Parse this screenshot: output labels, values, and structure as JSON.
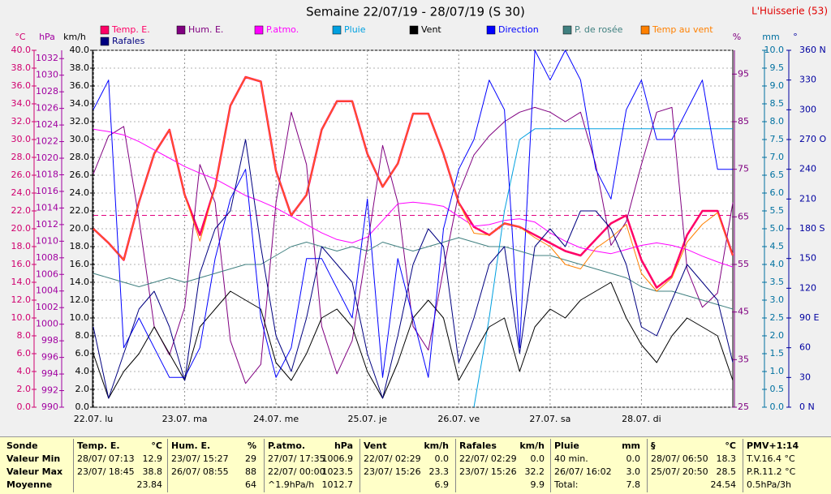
{
  "chart_data": {
    "type": "line",
    "title": "Semaine 22/07/19 - 28/07/19 (S 30)",
    "location": "L'Huisserie (53)",
    "grid": true,
    "xlim": [
      0,
      168
    ],
    "xticks": [
      {
        "value": 0,
        "label": "22.07. lu"
      },
      {
        "value": 24,
        "label": "23.07. ma"
      },
      {
        "value": 48,
        "label": "24.07. me"
      },
      {
        "value": 72,
        "label": "25.07. je"
      },
      {
        "value": 96,
        "label": "26.07. ve"
      },
      {
        "value": 120,
        "label": "27.07. sa"
      },
      {
        "value": 144,
        "label": "28.07. di"
      }
    ],
    "axes": [
      {
        "label": "°C",
        "color": "#d0006f",
        "lim": [
          0,
          40
        ],
        "ticks": [
          {
            "value": 0,
            "label": "0.0"
          },
          {
            "value": 2,
            "label": "2.0"
          },
          {
            "value": 4,
            "label": "4.0"
          },
          {
            "value": 6,
            "label": "6.0"
          },
          {
            "value": 8,
            "label": "8.0"
          },
          {
            "value": 10,
            "label": "10.0"
          },
          {
            "value": 12,
            "label": "12.0"
          },
          {
            "value": 14,
            "label": "14.0"
          },
          {
            "value": 16,
            "label": "16.0"
          },
          {
            "value": 18,
            "label": "18.0"
          },
          {
            "value": 20,
            "label": "20.0"
          },
          {
            "value": 22,
            "label": "22.0"
          },
          {
            "value": 24,
            "label": "24.0"
          },
          {
            "value": 26,
            "label": "26.0"
          },
          {
            "value": 28,
            "label": "28.0"
          },
          {
            "value": 30,
            "label": "30.0"
          },
          {
            "value": 32,
            "label": "32.0"
          },
          {
            "value": 34,
            "label": "34.0"
          },
          {
            "value": 36,
            "label": "36.0"
          },
          {
            "value": 38,
            "label": "38.0"
          },
          {
            "value": 40,
            "label": "40.0"
          }
        ]
      },
      {
        "label": "hPa",
        "color": "#a000a0",
        "lim": [
          990,
          1033
        ],
        "ticks": [
          990,
          992,
          994,
          996,
          998,
          1000,
          1002,
          1004,
          1006,
          1008,
          1010,
          1012,
          1014,
          1016,
          1018,
          1020,
          1022,
          1024,
          1026,
          1028,
          1030,
          1032
        ]
      },
      {
        "label": "km/h",
        "color": "#000000",
        "lim": [
          0,
          40
        ],
        "ticks": [
          {
            "value": 0,
            "label": "0.0"
          },
          {
            "value": 2,
            "label": "2.0"
          },
          {
            "value": 4,
            "label": "4.0"
          },
          {
            "value": 6,
            "label": "6.0"
          },
          {
            "value": 8,
            "label": "8.0"
          },
          {
            "value": 10,
            "label": "10.0"
          },
          {
            "value": 12,
            "label": "12.0"
          },
          {
            "value": 14,
            "label": "14.0"
          },
          {
            "value": 16,
            "label": "16.0"
          },
          {
            "value": 18,
            "label": "18.0"
          },
          {
            "value": 20,
            "label": "20.0"
          },
          {
            "value": 22,
            "label": "22.0"
          },
          {
            "value": 24,
            "label": "24.0"
          },
          {
            "value": 26,
            "label": "26.0"
          },
          {
            "value": 28,
            "label": "28.0"
          },
          {
            "value": 30,
            "label": "30.0"
          },
          {
            "value": 32,
            "label": "32.0"
          },
          {
            "value": 34,
            "label": "34.0"
          },
          {
            "value": 36,
            "label": "36.0"
          },
          {
            "value": 38,
            "label": "38.0"
          },
          {
            "value": 40,
            "label": "40.0"
          }
        ]
      },
      {
        "label": "%",
        "color": "#800080",
        "lim": [
          25,
          100
        ],
        "ticks": [
          25,
          35,
          45,
          55,
          65,
          75,
          85,
          95
        ]
      },
      {
        "label": "mm",
        "color": "#0070a0",
        "lim": [
          0,
          10
        ],
        "ticks": [
          {
            "value": 0,
            "label": "0.0"
          },
          {
            "value": 0.5,
            "label": "0.5"
          },
          {
            "value": 1,
            "label": "1.0"
          },
          {
            "value": 1.5,
            "label": "1.5"
          },
          {
            "value": 2,
            "label": "2.0"
          },
          {
            "value": 2.5,
            "label": "2.5"
          },
          {
            "value": 3,
            "label": "3.0"
          },
          {
            "value": 3.5,
            "label": "3.5"
          },
          {
            "value": 4,
            "label": "4.0"
          },
          {
            "value": 4.5,
            "label": "4.5"
          },
          {
            "value": 5,
            "label": "5.0"
          },
          {
            "value": 5.5,
            "label": "5.5"
          },
          {
            "value": 6,
            "label": "6.0"
          },
          {
            "value": 6.5,
            "label": "6.5"
          },
          {
            "value": 7,
            "label": "7.0"
          },
          {
            "value": 7.5,
            "label": "7.5"
          },
          {
            "value": 8,
            "label": "8.0"
          },
          {
            "value": 8.5,
            "label": "8.5"
          },
          {
            "value": 9,
            "label": "9.0"
          },
          {
            "value": 9.5,
            "label": "9.5"
          },
          {
            "value": 10,
            "label": "10.0"
          }
        ]
      },
      {
        "label": "°",
        "color": "#0000a0",
        "lim": [
          0,
          360
        ],
        "ticks": [
          {
            "value": 0,
            "label": "0 N"
          },
          30,
          60,
          {
            "value": 90,
            "label": "90 E"
          },
          120,
          150,
          {
            "value": 180,
            "label": "180 S"
          },
          210,
          240,
          {
            "value": 270,
            "label": "270 O"
          },
          300,
          330,
          {
            "value": 360,
            "label": "360 N"
          }
        ]
      }
    ],
    "x": [
      0,
      4,
      8,
      12,
      16,
      20,
      24,
      28,
      32,
      36,
      40,
      44,
      48,
      52,
      56,
      60,
      64,
      68,
      72,
      76,
      80,
      84,
      88,
      92,
      96,
      100,
      104,
      108,
      112,
      116,
      120,
      124,
      128,
      132,
      136,
      140,
      144,
      148,
      152,
      156,
      160,
      164,
      168
    ],
    "reference_line": {
      "value": 21.5,
      "axis": 0,
      "color": "#e0007f"
    },
    "series": [
      {
        "name": "Temp. E.",
        "color": "#ff0066",
        "axis": 0,
        "width": 2.5,
        "values": [
          20.0,
          18.4,
          16.5,
          23.0,
          28.4,
          31.1,
          23.8,
          19.3,
          24.7,
          33.8,
          37.0,
          36.5,
          26.5,
          21.5,
          23.8,
          31.1,
          34.3,
          34.3,
          28.4,
          24.7,
          27.3,
          32.9,
          32.9,
          28.4,
          22.9,
          20.2,
          19.3,
          20.6,
          20.2,
          19.3,
          18.4,
          17.5,
          17.0,
          18.8,
          20.6,
          21.5,
          16.5,
          13.4,
          14.7,
          19.3,
          22.0,
          22.0,
          17.0
        ]
      },
      {
        "name": "Hum. E.",
        "color": "#800080",
        "axis": 3,
        "width": 1,
        "values": [
          74,
          82,
          84,
          64.5,
          42,
          36,
          46,
          76,
          68,
          39,
          30,
          34,
          68,
          87,
          76,
          42,
          32,
          39,
          59,
          80,
          68,
          42,
          37,
          54,
          70,
          78,
          82,
          85,
          87,
          88,
          87,
          85,
          87,
          76,
          59,
          64,
          76,
          87,
          88,
          54,
          46,
          49,
          68
        ]
      },
      {
        "name": "P.atmo.",
        "color": "#ff00ff",
        "axis": 1,
        "width": 1,
        "values": [
          1023.5,
          1023.2,
          1022.8,
          1022.0,
          1021.0,
          1020.0,
          1019.0,
          1018.2,
          1017.5,
          1016.5,
          1015.5,
          1014.8,
          1014.0,
          1013.0,
          1012.0,
          1011.0,
          1010.2,
          1009.8,
          1010.5,
          1012.5,
          1014.5,
          1014.7,
          1014.5,
          1014.2,
          1013.0,
          1011.8,
          1012.0,
          1012.5,
          1012.7,
          1012.3,
          1011.0,
          1010.0,
          1009.2,
          1008.8,
          1008.5,
          1009.0,
          1009.5,
          1009.8,
          1009.5,
          1009.0,
          1008.2,
          1007.5,
          1006.9
        ]
      },
      {
        "name": "Pluie",
        "color": "#00a0e0",
        "axis": 4,
        "width": 1,
        "values": [
          null,
          null,
          null,
          null,
          null,
          null,
          null,
          null,
          null,
          null,
          null,
          null,
          null,
          null,
          null,
          null,
          null,
          null,
          null,
          null,
          null,
          null,
          null,
          null,
          null,
          0.0,
          2.5,
          5.5,
          7.5,
          7.8,
          7.8,
          7.8,
          7.8,
          7.8,
          7.8,
          7.8,
          7.8,
          7.8,
          7.8,
          7.8,
          7.8,
          7.8,
          7.8
        ]
      },
      {
        "name": "Vent",
        "color": "#000000",
        "axis": 2,
        "width": 1,
        "values": [
          6,
          1,
          4,
          6,
          9,
          6,
          3,
          9,
          11,
          13,
          12,
          11,
          5,
          3,
          6,
          10,
          11,
          9,
          4,
          1,
          5,
          10,
          12,
          10,
          3,
          6,
          9,
          10,
          4,
          9,
          11,
          10,
          12,
          13,
          14,
          10,
          7,
          5,
          8,
          10,
          9,
          8,
          3
        ]
      },
      {
        "name": "Direction",
        "color": "#0000ff",
        "axis": 5,
        "width": 1,
        "values": [
          300,
          330,
          60,
          90,
          60,
          30,
          30,
          60,
          150,
          210,
          240,
          90,
          30,
          60,
          150,
          150,
          120,
          90,
          210,
          30,
          150,
          90,
          30,
          180,
          240,
          270,
          330,
          300,
          60,
          360,
          330,
          360,
          330,
          240,
          210,
          300,
          330,
          270,
          270,
          300,
          330,
          240,
          240
        ]
      },
      {
        "name": "P. de rosée",
        "color": "#408080",
        "axis": 0,
        "width": 1,
        "values": [
          15.0,
          14.5,
          14.0,
          13.5,
          14.0,
          14.5,
          14.0,
          14.5,
          15.0,
          15.5,
          16.0,
          16.0,
          17.0,
          18.0,
          18.5,
          18.0,
          17.5,
          18.0,
          17.5,
          18.5,
          18.0,
          17.5,
          18.0,
          18.5,
          19.0,
          18.5,
          18.0,
          18.0,
          17.5,
          17.0,
          17.0,
          16.5,
          16.0,
          15.5,
          15.0,
          14.5,
          13.5,
          13.0,
          13.0,
          12.5,
          12.0,
          11.5,
          11.0
        ]
      },
      {
        "name": "Temp au vent",
        "color": "#ff8000",
        "axis": 0,
        "width": 1,
        "values": [
          20.0,
          18.4,
          16.5,
          23.0,
          28.4,
          31.1,
          23.8,
          18.6,
          24.7,
          33.8,
          37.0,
          36.5,
          26.5,
          21.5,
          23.8,
          31.1,
          34.3,
          34.3,
          28.4,
          24.7,
          27.3,
          32.9,
          32.9,
          28.4,
          22.9,
          19.5,
          19.3,
          20.6,
          20.2,
          19.0,
          18.0,
          16.0,
          15.5,
          17.8,
          19.0,
          20.5,
          15.0,
          13.0,
          14.5,
          18.5,
          20.5,
          21.8,
          17.0
        ]
      },
      {
        "name": "Rafales",
        "color": "#000080",
        "axis": 2,
        "width": 1,
        "values": [
          9,
          1,
          6,
          11,
          13,
          9,
          3,
          15,
          20,
          22,
          30,
          18,
          8,
          4,
          10,
          18,
          16,
          14,
          6,
          1,
          8,
          16,
          20,
          18,
          5,
          10,
          16,
          18,
          6,
          18,
          20,
          18,
          22,
          22,
          20,
          16,
          9,
          8,
          12,
          16,
          14,
          12,
          5
        ]
      }
    ]
  },
  "table": {
    "row_labels": [
      "Sonde",
      "Valeur Min",
      "Valeur Max",
      "Moyenne"
    ],
    "columns": [
      {
        "name": "Temp. E.",
        "unit": "°C",
        "min": [
          "28/07/ 07:13",
          "12.9"
        ],
        "max": [
          "23/07/ 18:45",
          "38.8"
        ],
        "mean": [
          "23.84"
        ]
      },
      {
        "name": "Hum. E.",
        "unit": "%",
        "min": [
          "23/07/ 15:27",
          "29"
        ],
        "max": [
          "26/07/ 08:55",
          "88"
        ],
        "mean": [
          "64"
        ]
      },
      {
        "name": "P.atmo.",
        "unit": "hPa",
        "min": [
          "27/07/ 17:35",
          "1006.9"
        ],
        "max": [
          "22/07/ 00:00",
          "1023.5"
        ],
        "mean": [
          "^1.9hPa/h",
          "1012.7"
        ]
      },
      {
        "name": "Vent",
        "unit": "km/h",
        "min": [
          "22/07/ 02:29",
          "0.0"
        ],
        "max": [
          "23/07/ 15:26",
          "23.3"
        ],
        "mean": [
          "6.9"
        ]
      },
      {
        "name": "Rafales",
        "unit": "km/h",
        "min": [
          "22/07/ 02:29",
          "0.0"
        ],
        "max": [
          "23/07/ 15:26",
          "32.2"
        ],
        "mean": [
          "9.9"
        ]
      },
      {
        "name": "Pluie",
        "unit": "mm",
        "min": [
          "40 min.",
          "0.0"
        ],
        "max": [
          "26/07/ 16:02",
          "3.0"
        ],
        "mean": [
          "Total:",
          "7.8"
        ]
      },
      {
        "name": "§",
        "unit": "°C",
        "min": [
          "28/07/ 06:50",
          "18.3"
        ],
        "max": [
          "25/07/ 20:50",
          "28.5"
        ],
        "mean": [
          "24.54"
        ]
      },
      {
        "name": "PMV+1:14",
        "min": [
          "T.V.16.4 °C"
        ],
        "max": [
          "P.R.11.2 °C"
        ],
        "mean": [
          "0.5hPa/3h"
        ]
      }
    ]
  }
}
